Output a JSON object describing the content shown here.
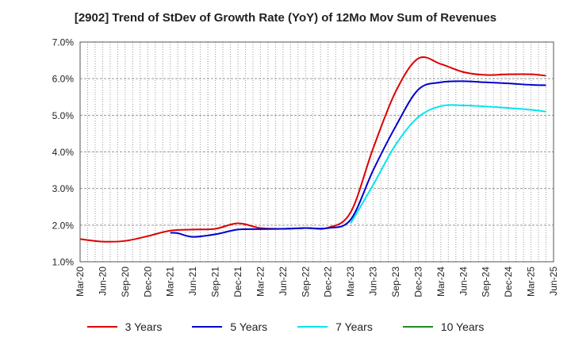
{
  "chart_data": {
    "type": "line",
    "title": "[2902]  Trend of StDev of Growth Rate (YoY) of 12Mo Mov Sum of Revenues",
    "xlabel": "",
    "ylabel": "",
    "ylim": [
      1.0,
      7.0
    ],
    "yticks": [
      "1.0%",
      "2.0%",
      "3.0%",
      "4.0%",
      "5.0%",
      "6.0%",
      "7.0%"
    ],
    "ytick_values": [
      1,
      2,
      3,
      4,
      5,
      6,
      7
    ],
    "xticks": [
      "Mar-20",
      "Jun-20",
      "Sep-20",
      "Dec-20",
      "Mar-21",
      "Jun-21",
      "Sep-21",
      "Dec-21",
      "Mar-22",
      "Jun-22",
      "Sep-22",
      "Dec-22",
      "Mar-23",
      "Jun-23",
      "Sep-23",
      "Dec-23",
      "Mar-24",
      "Jun-24",
      "Sep-24",
      "Dec-24",
      "Mar-25",
      "Jun-25"
    ],
    "grid": true,
    "x_start_month_index": 0,
    "x_span_months": 63,
    "series": [
      {
        "name": "3 Years",
        "color": "#dd0000",
        "x": [
          0,
          3,
          6,
          9,
          12,
          15,
          18,
          21,
          24,
          27,
          30,
          33,
          36,
          39,
          42,
          45,
          48,
          51,
          54,
          57,
          60,
          62
        ],
        "y": [
          1.62,
          1.55,
          1.57,
          1.7,
          1.85,
          1.88,
          1.9,
          2.05,
          1.92,
          1.9,
          1.92,
          1.93,
          2.35,
          4.1,
          5.65,
          6.55,
          6.4,
          6.18,
          6.1,
          6.12,
          6.12,
          6.08
        ]
      },
      {
        "name": "5 Years",
        "color": "#0000cc",
        "x": [
          12,
          13,
          15,
          18,
          21,
          24,
          27,
          30,
          33,
          36,
          39,
          42,
          45,
          48,
          51,
          54,
          57,
          60,
          62
        ],
        "y": [
          1.79,
          1.78,
          1.68,
          1.75,
          1.88,
          1.89,
          1.9,
          1.92,
          1.92,
          2.15,
          3.5,
          4.7,
          5.7,
          5.9,
          5.93,
          5.9,
          5.87,
          5.83,
          5.82
        ]
      },
      {
        "name": "7 Years",
        "color": "#00e5ee",
        "x": [
          36,
          39,
          42,
          45,
          48,
          51,
          54,
          57,
          60,
          62
        ],
        "y": [
          2.05,
          3.1,
          4.2,
          4.95,
          5.25,
          5.27,
          5.24,
          5.2,
          5.15,
          5.1
        ]
      },
      {
        "name": "10 Years",
        "color": "#228b22",
        "x": [],
        "y": []
      }
    ]
  }
}
